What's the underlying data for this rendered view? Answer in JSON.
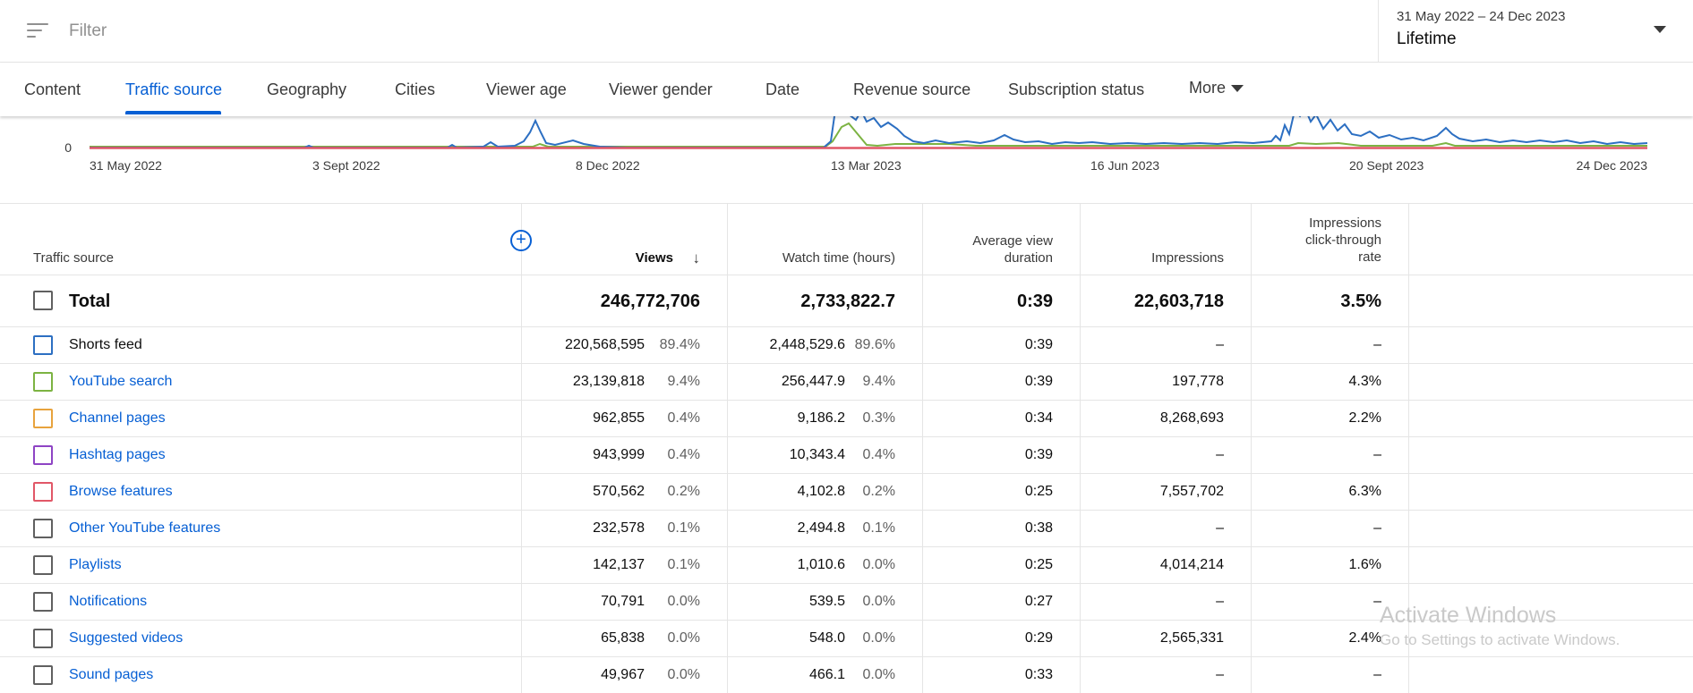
{
  "filter": {
    "placeholder": "Filter",
    "icon": "filter-lines-icon"
  },
  "date": {
    "range": "31 May 2022 – 24 Dec 2023",
    "label": "Lifetime"
  },
  "tabs": [
    {
      "label": "Content"
    },
    {
      "label": "Traffic source",
      "active": true
    },
    {
      "label": "Geography"
    },
    {
      "label": "Cities"
    },
    {
      "label": "Viewer age"
    },
    {
      "label": "Viewer gender"
    },
    {
      "label": "Date"
    },
    {
      "label": "Revenue source"
    },
    {
      "label": "Subscription status"
    },
    {
      "label": "More"
    }
  ],
  "chart": {
    "y_tick": "0",
    "x_ticks": [
      "31 May 2022",
      "3 Sept 2022",
      "8 Dec 2022",
      "13 Mar 2023",
      "16 Jun 2023",
      "20 Sept 2023",
      "24 Dec 2023"
    ],
    "colors": {
      "shorts": "#2c6fc2",
      "search": "#7cb342",
      "browse": "#e15767"
    }
  },
  "table": {
    "headers": {
      "source": "Traffic source",
      "views": "Views",
      "watch": "Watch time (hours)",
      "avg_line1": "Average view",
      "avg_line2": "duration",
      "impr": "Impressions",
      "ctr_line1": "Impressions",
      "ctr_line2": "click-through",
      "ctr_line3": "rate"
    },
    "total": {
      "label": "Total",
      "views": "246,772,706",
      "watch": "2,733,822.7",
      "avg": "0:39",
      "impr": "22,603,718",
      "ctr": "3.5%"
    },
    "rows": [
      {
        "label": "Shorts feed",
        "link": false,
        "color": "#2c6fc2",
        "views": "220,568,595",
        "views_pct": "89.4%",
        "watch": "2,448,529.6",
        "watch_pct": "89.6%",
        "avg": "0:39",
        "impr": "–",
        "ctr": "–"
      },
      {
        "label": "YouTube search",
        "link": true,
        "color": "#7cb342",
        "views": "23,139,818",
        "views_pct": "9.4%",
        "watch": "256,447.9",
        "watch_pct": "9.4%",
        "avg": "0:39",
        "impr": "197,778",
        "ctr": "4.3%"
      },
      {
        "label": "Channel pages",
        "link": true,
        "color": "#e8a33d",
        "views": "962,855",
        "views_pct": "0.4%",
        "watch": "9,186.2",
        "watch_pct": "0.3%",
        "avg": "0:34",
        "impr": "8,268,693",
        "ctr": "2.2%"
      },
      {
        "label": "Hashtag pages",
        "link": true,
        "color": "#8e44c4",
        "views": "943,999",
        "views_pct": "0.4%",
        "watch": "10,343.4",
        "watch_pct": "0.4%",
        "avg": "0:39",
        "impr": "–",
        "ctr": "–"
      },
      {
        "label": "Browse features",
        "link": true,
        "color": "#e15767",
        "views": "570,562",
        "views_pct": "0.2%",
        "watch": "4,102.8",
        "watch_pct": "0.2%",
        "avg": "0:25",
        "impr": "7,557,702",
        "ctr": "6.3%"
      },
      {
        "label": "Other YouTube features",
        "link": true,
        "color": "#606060",
        "views": "232,578",
        "views_pct": "0.1%",
        "watch": "2,494.8",
        "watch_pct": "0.1%",
        "avg": "0:38",
        "impr": "–",
        "ctr": "–"
      },
      {
        "label": "Playlists",
        "link": true,
        "color": "#606060",
        "views": "142,137",
        "views_pct": "0.1%",
        "watch": "1,010.6",
        "watch_pct": "0.0%",
        "avg": "0:25",
        "impr": "4,014,214",
        "ctr": "1.6%"
      },
      {
        "label": "Notifications",
        "link": true,
        "color": "#606060",
        "views": "70,791",
        "views_pct": "0.0%",
        "watch": "539.5",
        "watch_pct": "0.0%",
        "avg": "0:27",
        "impr": "–",
        "ctr": "–"
      },
      {
        "label": "Suggested videos",
        "link": true,
        "color": "#606060",
        "views": "65,838",
        "views_pct": "0.0%",
        "watch": "548.0",
        "watch_pct": "0.0%",
        "avg": "0:29",
        "impr": "2,565,331",
        "ctr": "2.4%"
      },
      {
        "label": "Sound pages",
        "link": true,
        "color": "#606060",
        "views": "49,967",
        "views_pct": "0.0%",
        "watch": "466.1",
        "watch_pct": "0.0%",
        "avg": "0:33",
        "impr": "–",
        "ctr": "–"
      }
    ]
  },
  "watermark": {
    "line1": "Activate Windows",
    "line2": "Go to Settings to activate Windows."
  }
}
